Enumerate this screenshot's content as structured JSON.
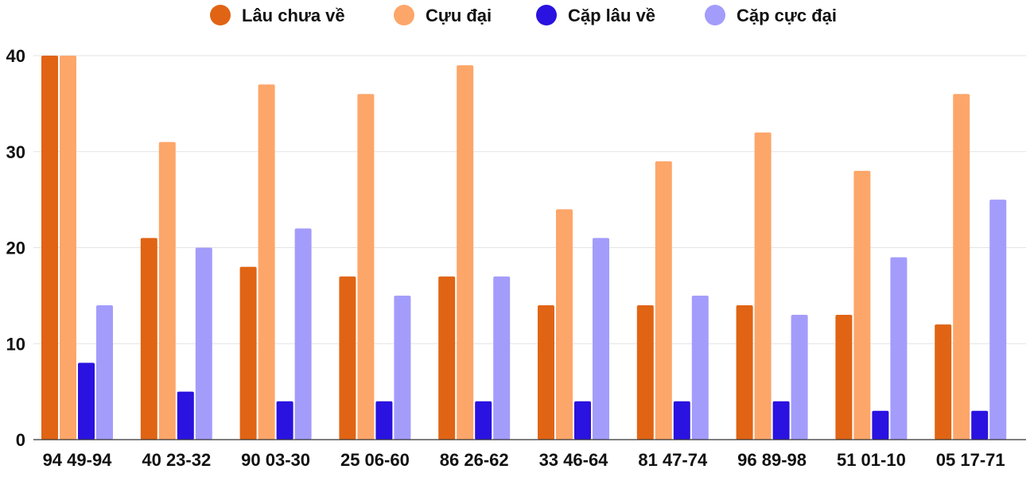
{
  "chart_data": {
    "type": "bar",
    "categories": [
      "94 49-94",
      "40 23-32",
      "90 03-30",
      "25 06-60",
      "86 26-62",
      "33 46-64",
      "81 47-74",
      "96 89-98",
      "51 01-10",
      "05 17-71"
    ],
    "series": [
      {
        "name": "Lâu chưa về",
        "color": "#e06414",
        "values": [
          40,
          21,
          18,
          17,
          17,
          14,
          14,
          14,
          13,
          12
        ]
      },
      {
        "name": "Cựu đại",
        "color": "#fda66a",
        "values": [
          40,
          31,
          37,
          36,
          39,
          24,
          29,
          32,
          28,
          36
        ]
      },
      {
        "name": "Cặp lâu về",
        "color": "#2a12e0",
        "values": [
          8,
          5,
          4,
          4,
          4,
          4,
          4,
          4,
          3,
          3
        ]
      },
      {
        "name": "Cặp cực đại",
        "color": "#a39cfb",
        "values": [
          14,
          20,
          22,
          15,
          17,
          21,
          15,
          13,
          19,
          25
        ]
      }
    ],
    "yticks": [
      0,
      10,
      20,
      30,
      40
    ],
    "ylim": [
      0,
      40
    ],
    "grid": true,
    "legend": "top-center"
  }
}
